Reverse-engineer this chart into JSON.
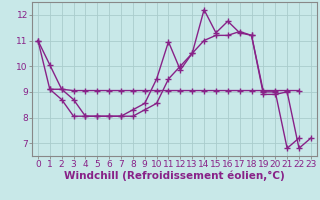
{
  "background_color": "#c8e8e8",
  "grid_color": "#aacccc",
  "line_color": "#882288",
  "marker": "+",
  "markersize": 5,
  "linewidth": 1.0,
  "xlabel": "Windchill (Refroidissement éolien,°C)",
  "xlim": [
    -0.5,
    23.5
  ],
  "ylim": [
    6.5,
    12.5
  ],
  "xticks": [
    0,
    1,
    2,
    3,
    4,
    5,
    6,
    7,
    8,
    9,
    10,
    11,
    12,
    13,
    14,
    15,
    16,
    17,
    18,
    19,
    20,
    21,
    22,
    23
  ],
  "yticks": [
    7,
    8,
    9,
    10,
    11,
    12
  ],
  "series": [
    {
      "x": [
        0,
        1,
        2,
        3,
        4,
        5,
        6,
        7,
        8,
        9,
        10,
        11,
        12,
        13,
        14,
        15,
        16,
        17,
        18,
        19,
        20,
        21,
        22
      ],
      "y": [
        11.0,
        10.05,
        9.1,
        8.7,
        8.05,
        8.05,
        8.05,
        8.05,
        8.3,
        8.55,
        9.5,
        10.95,
        9.85,
        10.5,
        12.2,
        11.3,
        11.75,
        11.3,
        11.2,
        9.0,
        9.0,
        6.8,
        7.2
      ]
    },
    {
      "x": [
        0,
        1,
        2,
        3,
        4,
        5,
        6,
        7,
        8,
        9,
        10,
        11,
        12,
        13,
        14,
        15,
        16,
        17,
        18,
        19,
        20,
        21,
        22
      ],
      "y": [
        11.0,
        9.1,
        9.1,
        9.05,
        9.05,
        9.05,
        9.05,
        9.05,
        9.05,
        9.05,
        9.05,
        9.05,
        9.05,
        9.05,
        9.05,
        9.05,
        9.05,
        9.05,
        9.05,
        9.05,
        9.05,
        9.05,
        9.05
      ]
    },
    {
      "x": [
        1,
        2,
        3,
        4,
        5,
        6,
        7,
        8,
        9,
        10,
        11,
        12,
        13,
        14,
        15,
        16,
        17,
        18,
        19,
        20,
        21,
        22,
        23
      ],
      "y": [
        9.1,
        8.7,
        8.05,
        8.05,
        8.05,
        8.05,
        8.05,
        8.05,
        8.3,
        8.55,
        9.5,
        10.0,
        10.5,
        11.0,
        11.2,
        11.2,
        11.35,
        11.2,
        8.9,
        8.9,
        9.0,
        6.8,
        7.2
      ]
    }
  ],
  "tick_labelsize": 6.5,
  "xlabel_fontsize": 7.5,
  "xlabel_fontweight": "bold"
}
